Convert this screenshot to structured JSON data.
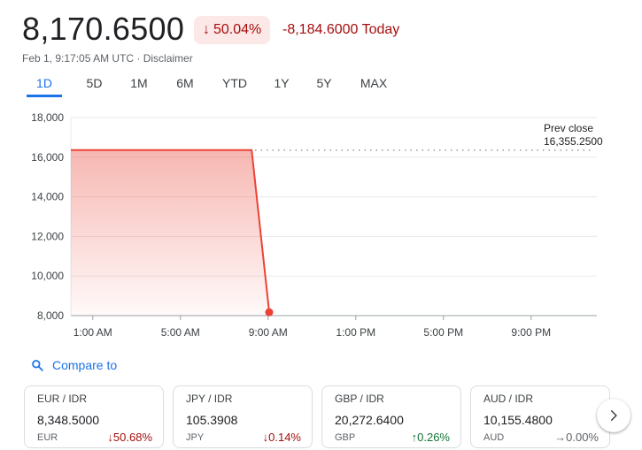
{
  "quote": {
    "price": "8,170.6500",
    "change_pct": "50.04%",
    "change_abs": "-8,184.6000 Today",
    "timestamp": "Feb 1, 9:17:05 AM UTC · Disclaimer",
    "down_color": "#a50e0e"
  },
  "tabs": [
    "1D",
    "5D",
    "1M",
    "6M",
    "YTD",
    "1Y",
    "5Y",
    "MAX"
  ],
  "active_tab": "1D",
  "chart_data": {
    "type": "line",
    "y_ticks": [
      "18,000",
      "16,000",
      "14,000",
      "12,000",
      "10,000",
      "8,000"
    ],
    "ylim": [
      8000,
      18000
    ],
    "x_ticks": [
      "1:00 AM",
      "5:00 AM",
      "9:00 AM",
      "1:00 PM",
      "5:00 PM",
      "9:00 PM"
    ],
    "x_hours": [
      1,
      5,
      9,
      13,
      17,
      21
    ],
    "xlim_hours": [
      0,
      24
    ],
    "series": [
      {
        "points": [
          [
            0,
            16355.25
          ],
          [
            8.25,
            16355.25
          ],
          [
            9.05,
            8170.65
          ]
        ],
        "color": "#ea4335"
      }
    ],
    "prev_close": {
      "label": "Prev close",
      "value_label": "16,355.2500",
      "value": 16355.25
    },
    "grid": true
  },
  "compare": {
    "label": "Compare to",
    "icon": "search-icon"
  },
  "cards": [
    {
      "pair": "EUR / IDR",
      "value": "8,348.5000",
      "currency": "EUR",
      "change": "50.68%",
      "direction": "down"
    },
    {
      "pair": "JPY / IDR",
      "value": "105.3908",
      "currency": "JPY",
      "change": "0.14%",
      "direction": "down"
    },
    {
      "pair": "GBP / IDR",
      "value": "20,272.6400",
      "currency": "GBP",
      "change": "0.26%",
      "direction": "up"
    },
    {
      "pair": "AUD / IDR",
      "value": "10,155.4800",
      "currency": "AUD",
      "change": "0.00%",
      "direction": "flat"
    }
  ],
  "next_icon": "chevron-right-icon"
}
